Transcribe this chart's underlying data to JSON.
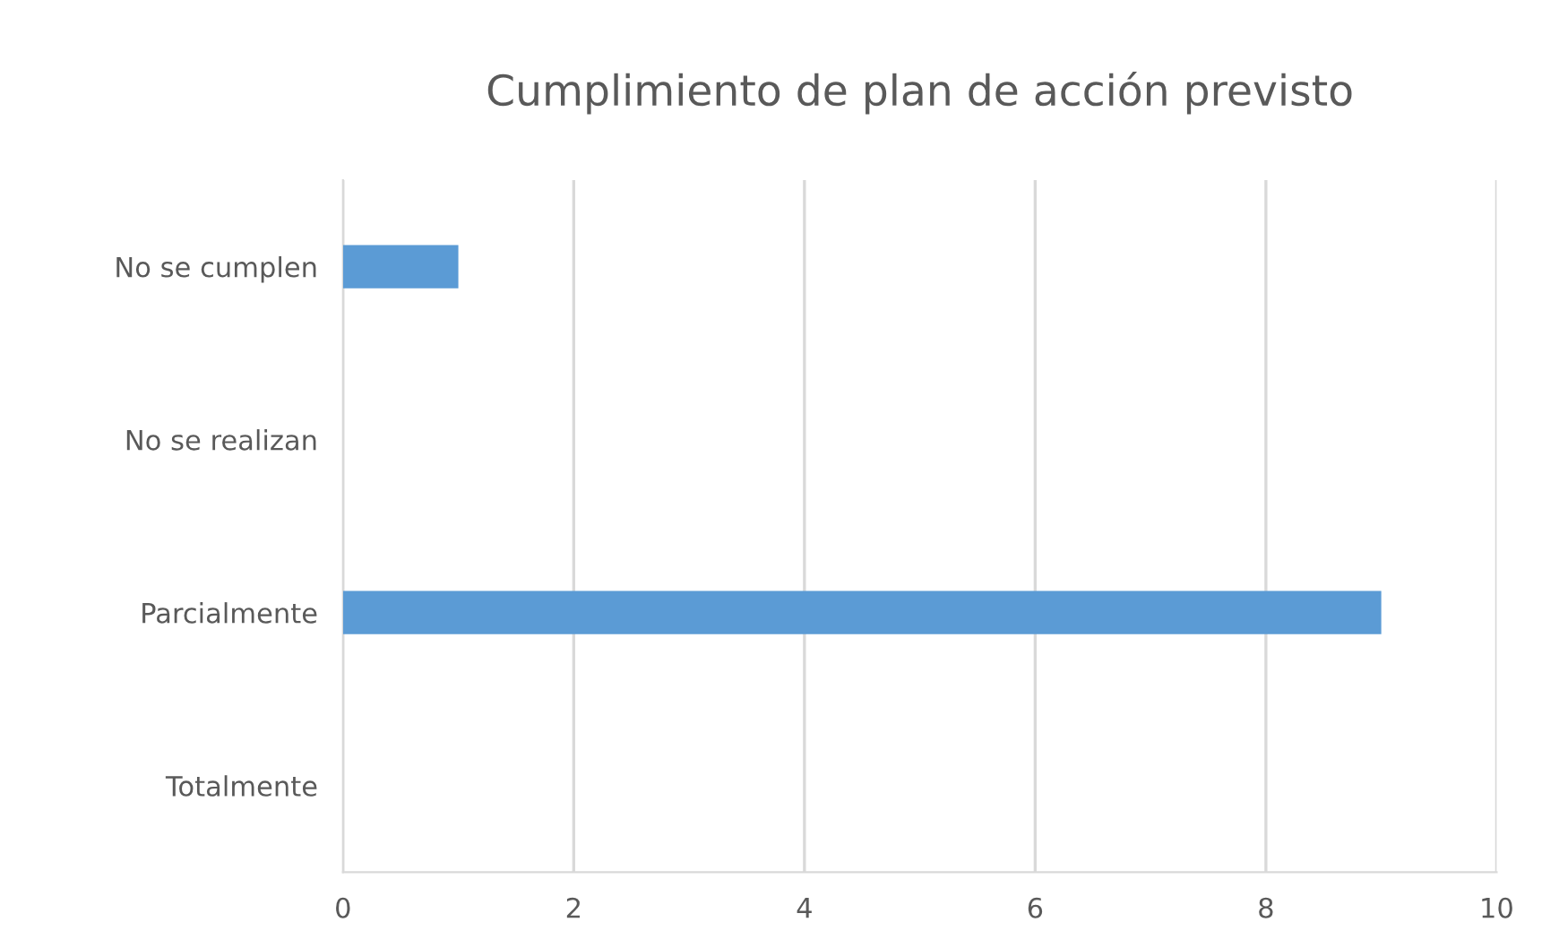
{
  "chart_data": {
    "type": "bar",
    "orientation": "horizontal",
    "title": "Cumplimiento de plan de acción previsto",
    "categories": [
      "No se cumplen",
      "No se realizan",
      "Parcialmente",
      "Totalmente"
    ],
    "values": [
      1,
      0,
      9,
      0
    ],
    "color": "#5b9bd5",
    "xlim": [
      0,
      10
    ],
    "xticks": [
      0,
      2,
      4,
      6,
      8,
      10
    ],
    "grid": "x",
    "legend": false
  }
}
